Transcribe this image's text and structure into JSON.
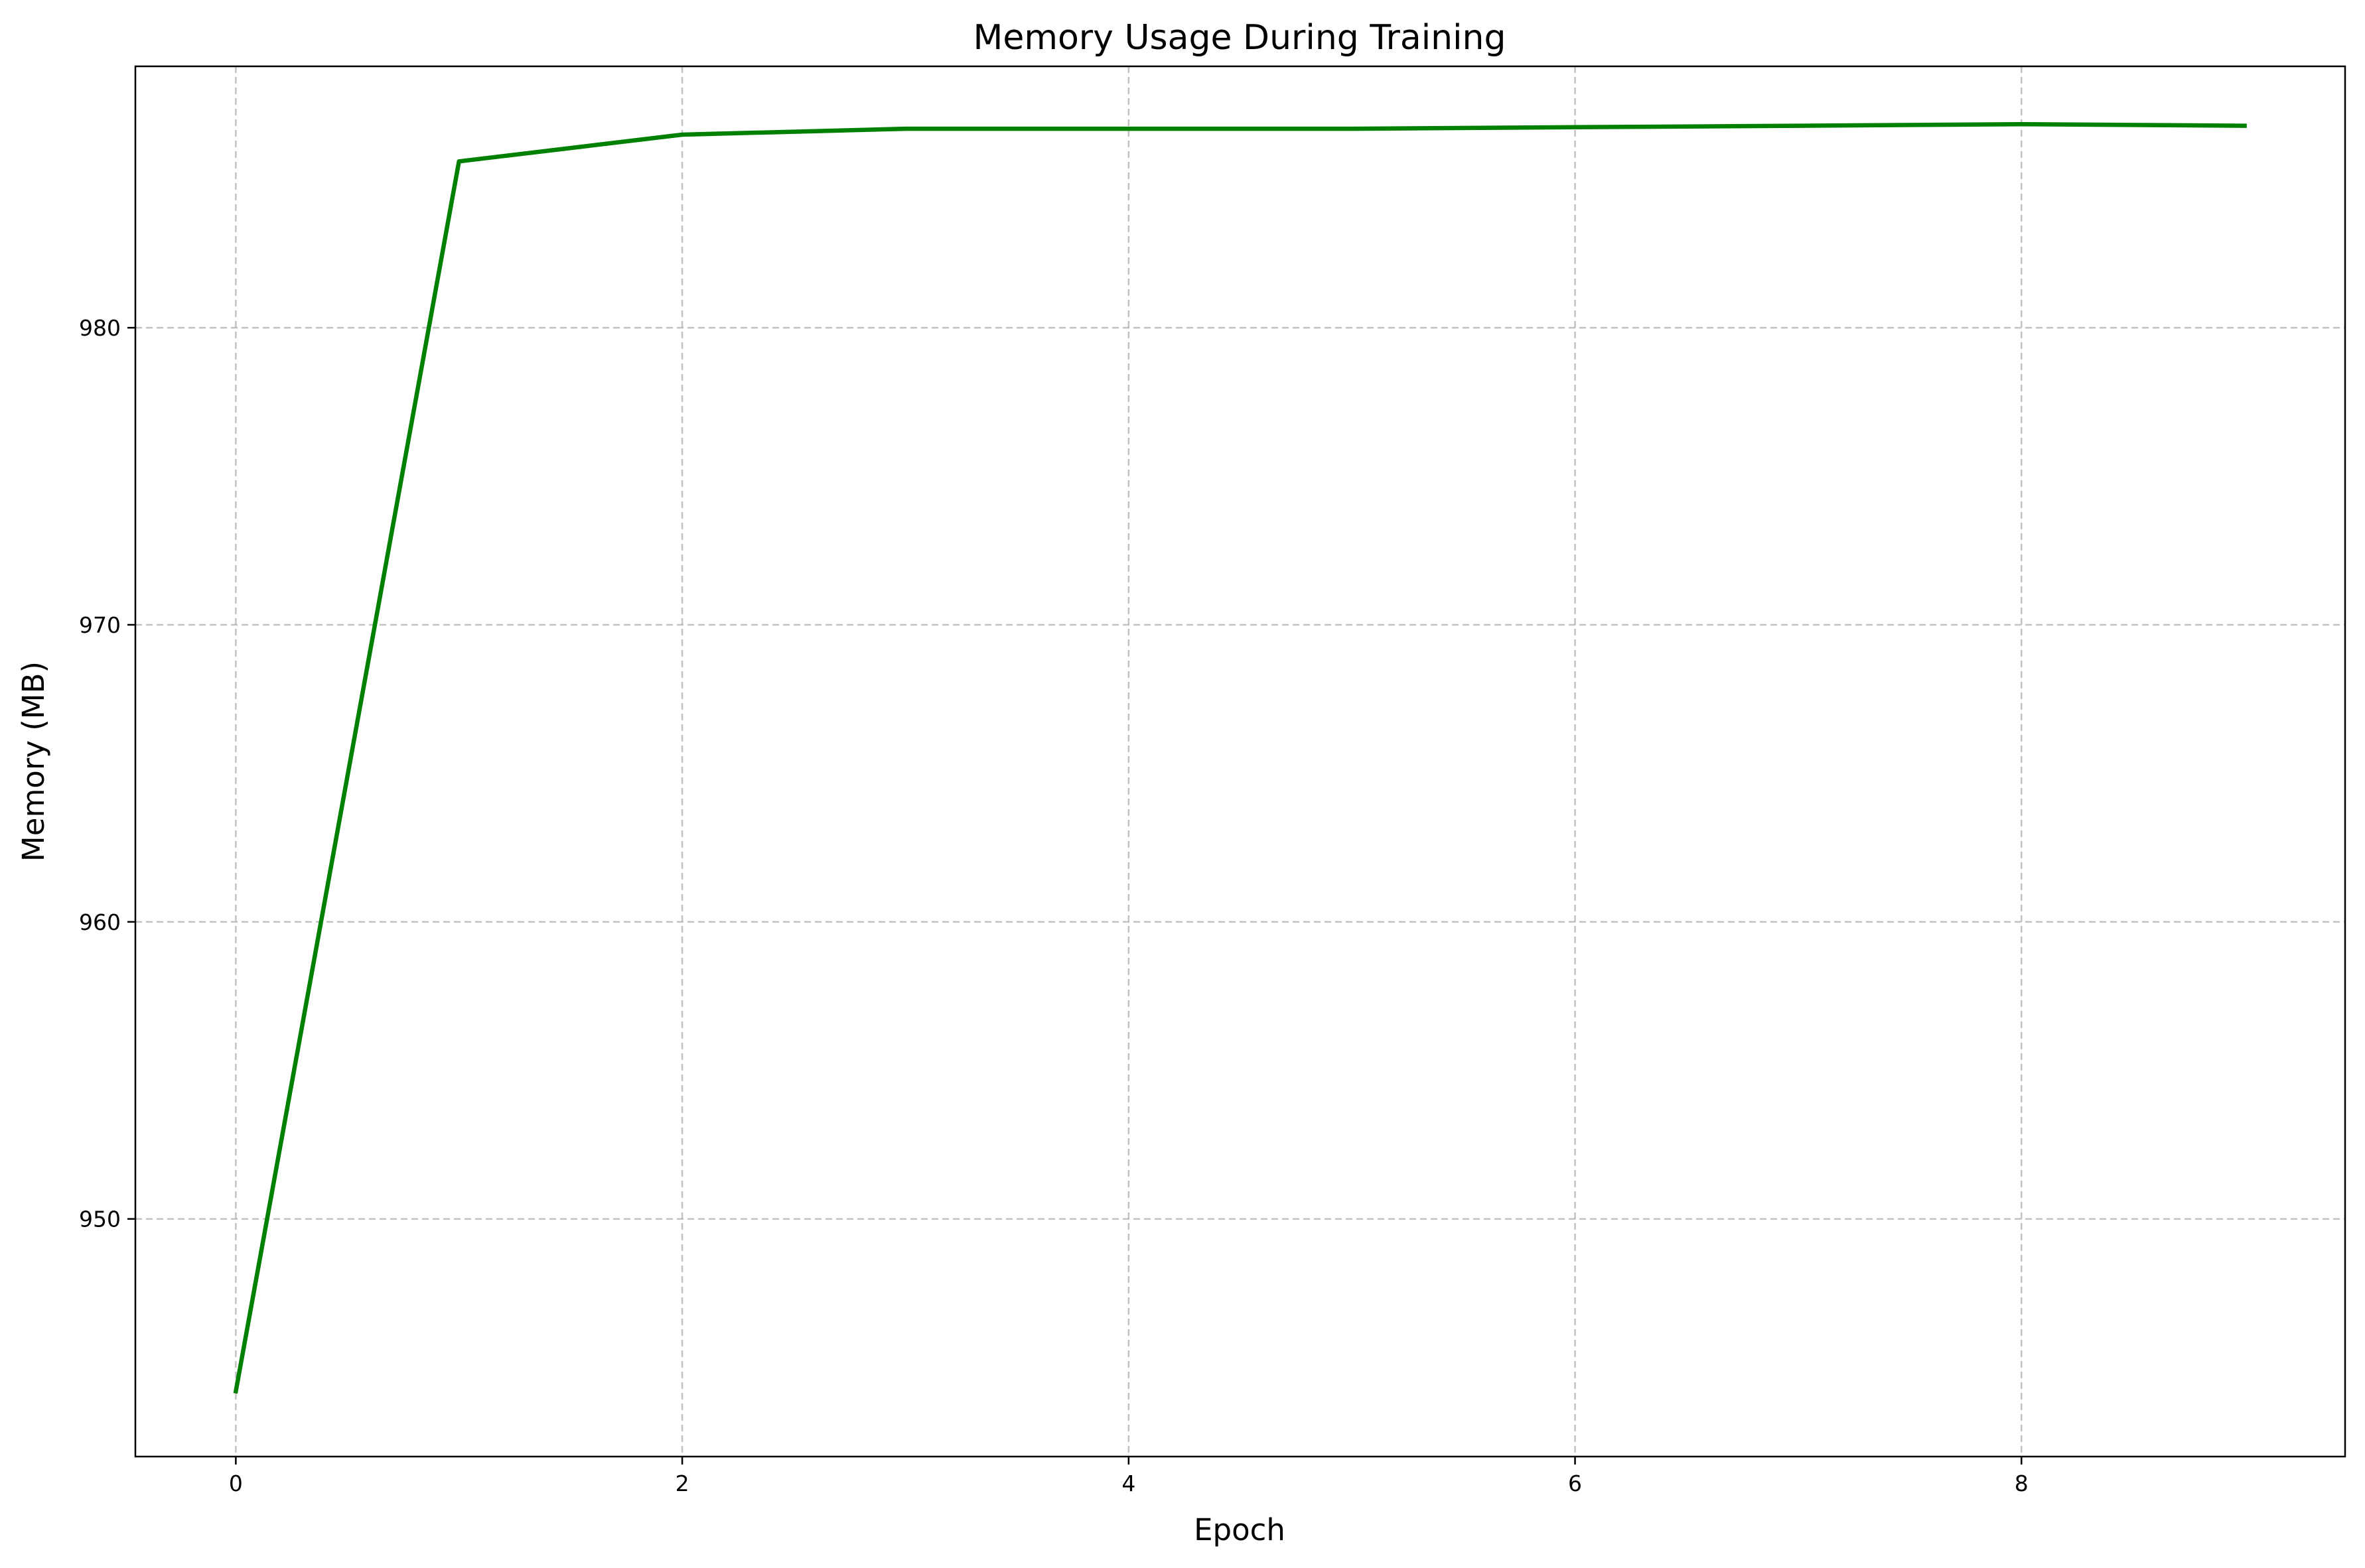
{
  "chart_data": {
    "type": "line",
    "title": "Memory Usage During Training",
    "xlabel": "Epoch",
    "ylabel": "Memory (MB)",
    "xlim": [
      -0.45,
      9.45
    ],
    "ylim": [
      942.0,
      988.8
    ],
    "xticks": [
      0,
      2,
      4,
      6,
      8
    ],
    "yticks": [
      950,
      960,
      970,
      980
    ],
    "grid": true,
    "legend": "none",
    "series": [
      {
        "color": "#008000",
        "x": [
          0,
          1,
          2,
          3,
          4,
          5,
          6,
          7,
          8,
          9
        ],
        "y": [
          944.2,
          985.6,
          986.5,
          986.7,
          986.7,
          986.7,
          986.75,
          986.8,
          986.85,
          986.8
        ]
      }
    ]
  }
}
